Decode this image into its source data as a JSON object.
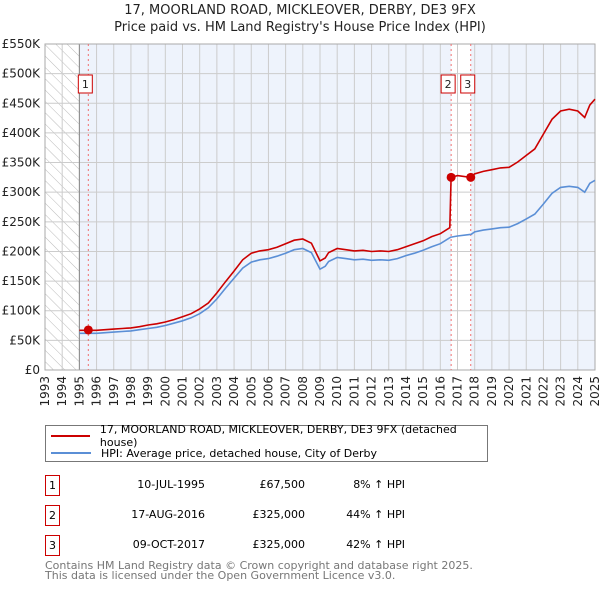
{
  "title_line1": "17, MOORLAND ROAD, MICKLEOVER, DERBY, DE3 9FX",
  "title_line2": "Price paid vs. HM Land Registry's House Price Index (HPI)",
  "colors": {
    "property": "#cc0000",
    "hpi": "#5b8fd6",
    "background": "#eef3fc"
  },
  "chart_data": {
    "type": "line",
    "xlim": [
      1993,
      2025
    ],
    "ylim": [
      0,
      550000
    ],
    "x_ticks": [
      "1993",
      "1994",
      "1995",
      "1996",
      "1997",
      "1998",
      "1999",
      "2000",
      "2001",
      "2002",
      "2003",
      "2004",
      "2005",
      "2006",
      "2007",
      "2008",
      "2009",
      "2010",
      "2011",
      "2012",
      "2013",
      "2014",
      "2015",
      "2016",
      "2017",
      "2018",
      "2019",
      "2020",
      "2021",
      "2022",
      "2023",
      "2024",
      "2025"
    ],
    "y_ticks": [
      {
        "v": 0,
        "label": "£0"
      },
      {
        "v": 50000,
        "label": "£50K"
      },
      {
        "v": 100000,
        "label": "£100K"
      },
      {
        "v": 150000,
        "label": "£150K"
      },
      {
        "v": 200000,
        "label": "£200K"
      },
      {
        "v": 250000,
        "label": "£250K"
      },
      {
        "v": 300000,
        "label": "£300K"
      },
      {
        "v": 350000,
        "label": "£350K"
      },
      {
        "v": 400000,
        "label": "£400K"
      },
      {
        "v": 450000,
        "label": "£450K"
      },
      {
        "v": 500000,
        "label": "£500K"
      },
      {
        "v": 550000,
        "label": "£550K"
      }
    ],
    "grid": true,
    "series": [
      {
        "name": "17, MOORLAND ROAD, MICKLEOVER, DERBY, DE3 9FX (detached house)",
        "color": "#cc0000",
        "x": [
          1995,
          1995.5,
          1996,
          1996.5,
          1997,
          1997.5,
          1998,
          1998.5,
          1999,
          1999.5,
          2000,
          2000.5,
          2001,
          2001.5,
          2002,
          2002.5,
          2003,
          2003.5,
          2004,
          2004.5,
          2005,
          2005.5,
          2006,
          2006.5,
          2007,
          2007.5,
          2008,
          2008.5,
          2009,
          2009.3,
          2009.5,
          2010,
          2010.5,
          2011,
          2011.5,
          2012,
          2012.5,
          2013,
          2013.5,
          2014,
          2014.5,
          2015,
          2015.5,
          2016,
          2016.55,
          2016.63,
          2017,
          2017.77,
          2018,
          2018.5,
          2019,
          2019.5,
          2020,
          2020.5,
          2021,
          2021.5,
          2022,
          2022.5,
          2023,
          2023.5,
          2024,
          2024.4,
          2024.7,
          2025
        ],
        "y": [
          67000,
          67000,
          67000,
          68000,
          69000,
          70000,
          71000,
          73000,
          76000,
          78000,
          81000,
          85000,
          90000,
          95000,
          103000,
          113000,
          130000,
          149000,
          167000,
          186000,
          197000,
          201000,
          203000,
          207000,
          213000,
          219000,
          221000,
          214000,
          184000,
          189000,
          198000,
          205000,
          203000,
          201000,
          202000,
          200000,
          201000,
          200000,
          203000,
          208000,
          213000,
          218000,
          225000,
          230000,
          240000,
          325000,
          328000,
          325000,
          331000,
          335000,
          338000,
          341000,
          342000,
          351000,
          362000,
          373000,
          398000,
          423000,
          437000,
          440000,
          437000,
          426000,
          447000,
          457000
        ]
      },
      {
        "name": "HPI: Average price, detached house, City of Derby",
        "color": "#5b8fd6",
        "x": [
          1995,
          1995.5,
          1996,
          1996.5,
          1997,
          1997.5,
          1998,
          1998.5,
          1999,
          1999.5,
          2000,
          2000.5,
          2001,
          2001.5,
          2002,
          2002.5,
          2003,
          2003.5,
          2004,
          2004.5,
          2005,
          2005.5,
          2006,
          2006.5,
          2007,
          2007.5,
          2008,
          2008.5,
          2009,
          2009.3,
          2009.5,
          2010,
          2010.5,
          2011,
          2011.5,
          2012,
          2012.5,
          2013,
          2013.5,
          2014,
          2014.5,
          2015,
          2015.5,
          2016,
          2016.6,
          2017,
          2017.8,
          2018,
          2018.5,
          2019,
          2019.5,
          2020,
          2020.5,
          2021,
          2021.5,
          2022,
          2022.5,
          2023,
          2023.5,
          2024,
          2024.4,
          2024.7,
          2025
        ],
        "y": [
          62000,
          62000,
          62000,
          63000,
          64000,
          65000,
          66000,
          68000,
          70000,
          72000,
          75000,
          79000,
          83000,
          88000,
          95000,
          105000,
          120000,
          138000,
          155000,
          172000,
          182000,
          186000,
          188000,
          192000,
          197000,
          203000,
          205000,
          198000,
          170000,
          175000,
          183000,
          190000,
          188000,
          186000,
          187000,
          185000,
          186000,
          185000,
          188000,
          193000,
          197000,
          202000,
          208000,
          213000,
          224000,
          226000,
          229000,
          233000,
          236000,
          238000,
          240000,
          241000,
          247000,
          255000,
          263000,
          280000,
          298000,
          308000,
          310000,
          308000,
          300000,
          315000,
          320000
        ]
      }
    ],
    "sales": [
      {
        "label": "1",
        "x": 1995.52,
        "y": 67500
      },
      {
        "label": "2",
        "x": 2016.63,
        "y": 325000
      },
      {
        "label": "3",
        "x": 2017.77,
        "y": 325000
      }
    ],
    "hatched_before": 1995
  },
  "legend": {
    "property": "17, MOORLAND ROAD, MICKLEOVER, DERBY, DE3 9FX (detached house)",
    "hpi": "HPI: Average price, detached house, City of Derby"
  },
  "transactions": [
    {
      "num": "1",
      "date": "10-JUL-1995",
      "price": "£67,500",
      "hpi": "8% ↑ HPI"
    },
    {
      "num": "2",
      "date": "17-AUG-2016",
      "price": "£325,000",
      "hpi": "44% ↑ HPI"
    },
    {
      "num": "3",
      "date": "09-OCT-2017",
      "price": "£325,000",
      "hpi": "42% ↑ HPI"
    }
  ],
  "footer": {
    "line1": "Contains HM Land Registry data © Crown copyright and database right 2025.",
    "line2": "This data is licensed under the Open Government Licence v3.0."
  }
}
